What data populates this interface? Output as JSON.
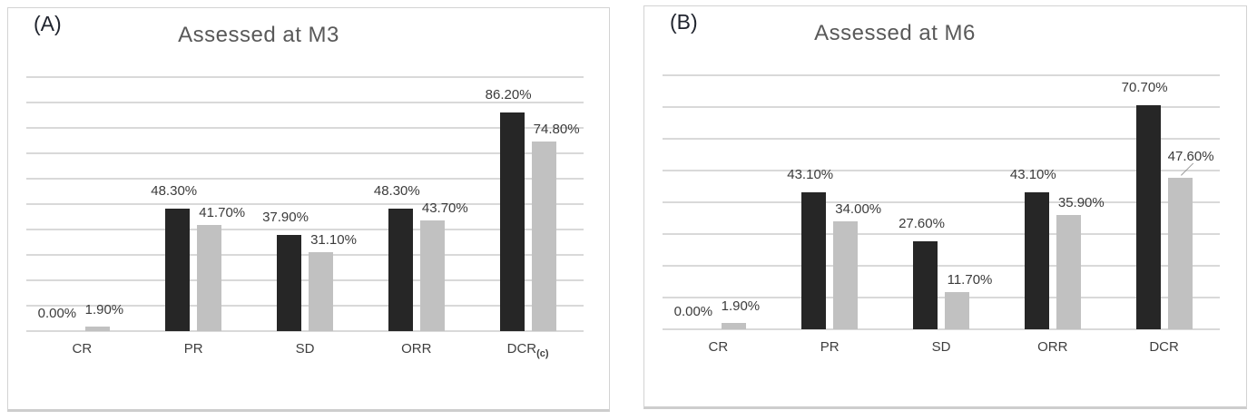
{
  "page": {
    "background": "#ffffff"
  },
  "colors": {
    "bar_black": "#262626",
    "bar_gray": "#c1c1c1",
    "gridline": "#d9d9d9",
    "panel_border": "#d3d3d3",
    "title_text": "#595959",
    "label_text": "#3b3b3b"
  },
  "chart_data": [
    {
      "type": "bar",
      "panel_label": "(A)",
      "title": "Assessed at M3",
      "categories": [
        {
          "label": "CR"
        },
        {
          "label": "PR"
        },
        {
          "label": "SD"
        },
        {
          "label": "ORR"
        },
        {
          "label": "DCR",
          "subscript": "(c)"
        }
      ],
      "series": [
        {
          "name": "black",
          "color": "#262626",
          "values": [
            0,
            48.3,
            37.9,
            48.3,
            86.2
          ],
          "labels": [
            "0.00%",
            "48.30%",
            "37.90%",
            "48.30%",
            "86.20%"
          ]
        },
        {
          "name": "gray",
          "color": "#c1c1c1",
          "values": [
            1.9,
            41.7,
            31.1,
            43.7,
            74.8
          ],
          "labels": [
            "1.90%",
            "41.70%",
            "31.10%",
            "43.70%",
            "74.80%"
          ]
        }
      ],
      "ylim": [
        0,
        100
      ],
      "grid_step": 10,
      "grid": true,
      "legend": "none",
      "xlabel": "",
      "ylabel": ""
    },
    {
      "type": "bar",
      "panel_label": "(B)",
      "title": "Assessed at M6",
      "categories": [
        {
          "label": "CR"
        },
        {
          "label": "PR"
        },
        {
          "label": "SD"
        },
        {
          "label": "ORR"
        },
        {
          "label": "DCR"
        }
      ],
      "series": [
        {
          "name": "black",
          "color": "#262626",
          "values": [
            0,
            43.1,
            27.6,
            43.1,
            70.7
          ],
          "labels": [
            "0.00%",
            "43.10%",
            "27.60%",
            "43.10%",
            "70.70%"
          ]
        },
        {
          "name": "gray",
          "color": "#c1c1c1",
          "values": [
            1.9,
            34.0,
            11.7,
            35.9,
            47.6
          ],
          "labels": [
            "1.90%",
            "34.00%",
            "11.70%",
            "35.90%",
            "47.60%"
          ]
        }
      ],
      "ylim": [
        0,
        80
      ],
      "grid_step": 10,
      "grid": true,
      "legend": "none",
      "xlabel": "",
      "ylabel": "",
      "callout": {
        "series_index": 1,
        "point_index": 4,
        "note": "leader line from 47.60% label to gray DCR bar"
      }
    }
  ]
}
